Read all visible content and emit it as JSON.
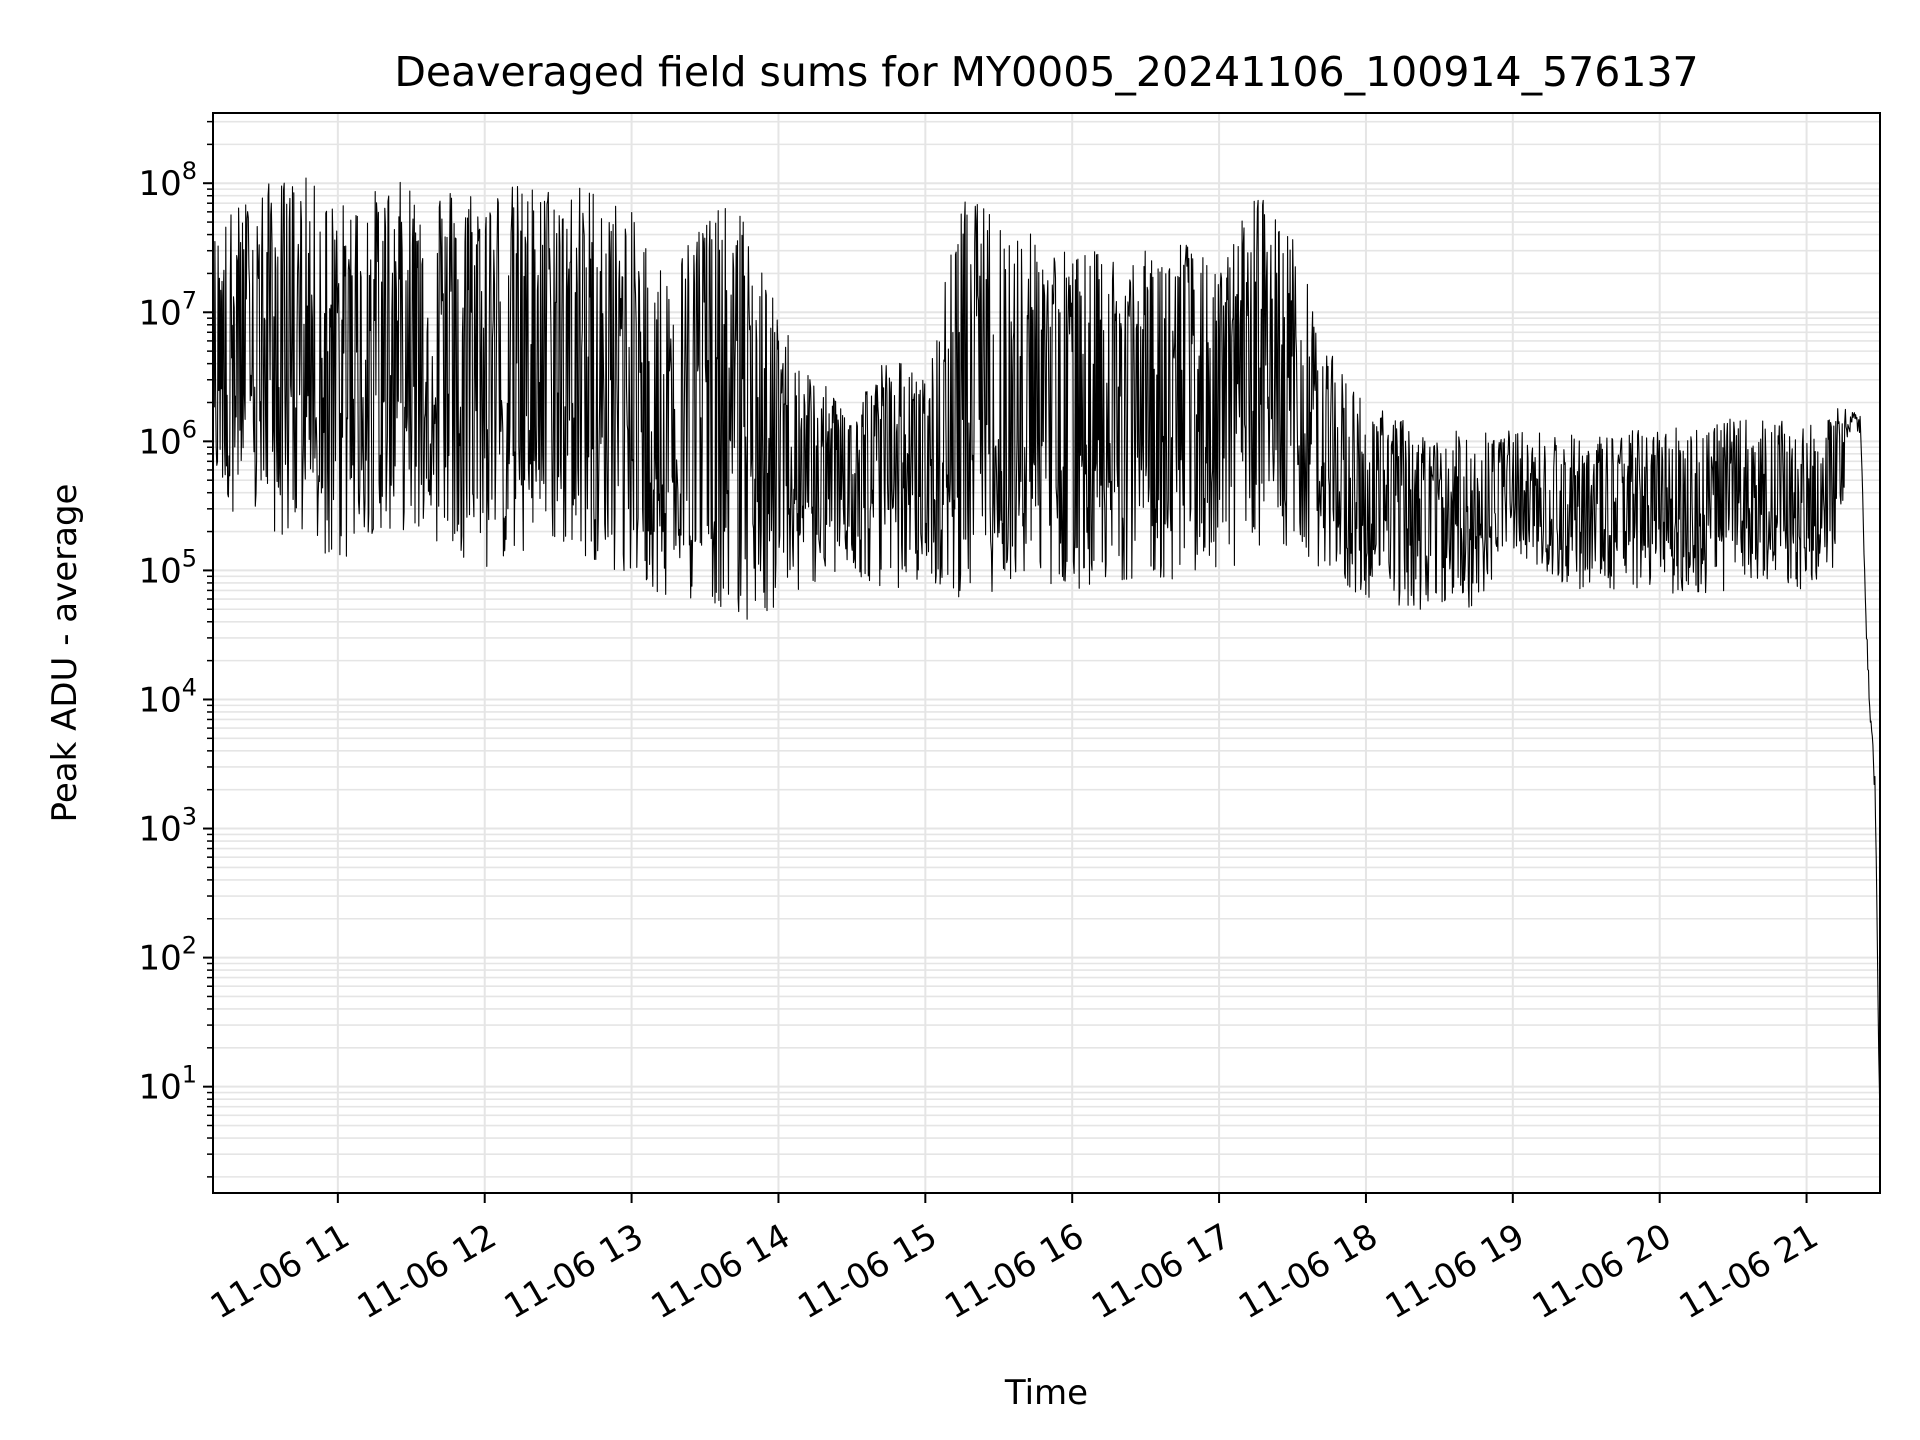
{
  "chart_data": {
    "type": "line",
    "title": "Deaveraged field sums for MY0005_20241106_100914_576137",
    "xlabel": "Time",
    "ylabel": "Peak ADU - average",
    "yscale": "log",
    "ylim": [
      1.5,
      350000000
    ],
    "xlim": [
      "2024-11-06 10:09",
      "2024-11-06 21:30"
    ],
    "grid": true,
    "line_color": "#000000",
    "grid_color": "#e5e5e5",
    "x_ticks": [
      {
        "value": "2024-11-06 11:00",
        "label": "11-06 11"
      },
      {
        "value": "2024-11-06 12:00",
        "label": "11-06 12"
      },
      {
        "value": "2024-11-06 13:00",
        "label": "11-06 13"
      },
      {
        "value": "2024-11-06 14:00",
        "label": "11-06 14"
      },
      {
        "value": "2024-11-06 15:00",
        "label": "11-06 15"
      },
      {
        "value": "2024-11-06 16:00",
        "label": "11-06 16"
      },
      {
        "value": "2024-11-06 17:00",
        "label": "11-06 17"
      },
      {
        "value": "2024-11-06 18:00",
        "label": "11-06 18"
      },
      {
        "value": "2024-11-06 19:00",
        "label": "11-06 19"
      },
      {
        "value": "2024-11-06 20:00",
        "label": "11-06 20"
      },
      {
        "value": "2024-11-06 21:00",
        "label": "11-06 21"
      }
    ],
    "y_ticks": [
      {
        "value": 10,
        "base": "10",
        "exp": "1"
      },
      {
        "value": 100,
        "base": "10",
        "exp": "2"
      },
      {
        "value": 1000,
        "base": "10",
        "exp": "3"
      },
      {
        "value": 10000,
        "base": "10",
        "exp": "4"
      },
      {
        "value": 100000,
        "base": "10",
        "exp": "5"
      },
      {
        "value": 1000000,
        "base": "10",
        "exp": "6"
      },
      {
        "value": 10000000,
        "base": "10",
        "exp": "7"
      },
      {
        "value": 100000000,
        "base": "10",
        "exp": "8"
      }
    ],
    "series": [
      {
        "x": [
          "2024-11-06 10:09",
          "2024-11-06 10:15",
          "2024-11-06 10:30",
          "2024-11-06 10:45",
          "2024-11-06 11:00",
          "2024-11-06 11:15",
          "2024-11-06 11:30",
          "2024-11-06 11:45",
          "2024-11-06 12:00",
          "2024-11-06 12:15",
          "2024-11-06 12:30",
          "2024-11-06 12:45",
          "2024-11-06 13:00",
          "2024-11-06 13:15",
          "2024-11-06 13:30",
          "2024-11-06 13:45",
          "2024-11-06 14:00",
          "2024-11-06 14:15",
          "2024-11-06 14:30",
          "2024-11-06 14:45",
          "2024-11-06 15:00",
          "2024-11-06 15:15",
          "2024-11-06 15:30",
          "2024-11-06 15:45",
          "2024-11-06 16:00",
          "2024-11-06 16:15",
          "2024-11-06 16:30",
          "2024-11-06 16:45",
          "2024-11-06 17:00",
          "2024-11-06 17:15",
          "2024-11-06 17:30",
          "2024-11-06 17:45",
          "2024-11-06 18:00",
          "2024-11-06 18:15",
          "2024-11-06 18:30",
          "2024-11-06 18:45",
          "2024-11-06 19:00",
          "2024-11-06 19:15",
          "2024-11-06 19:30",
          "2024-11-06 19:45",
          "2024-11-06 20:00",
          "2024-11-06 20:15",
          "2024-11-06 20:30",
          "2024-11-06 20:45",
          "2024-11-06 21:00",
          "2024-11-06 21:10",
          "2024-11-06 21:18",
          "2024-11-06 21:22",
          "2024-11-06 21:25",
          "2024-11-06 21:28",
          "2024-11-06 21:30"
        ],
        "hi": [
          40000000,
          60000000,
          100000000,
          120000000,
          70000000,
          90000000,
          110000000,
          100000000,
          100000000,
          100000000,
          100000000,
          100000000,
          60000000,
          20000000,
          70000000,
          60000000,
          10000000,
          3000000,
          2000000,
          5000000,
          3000000,
          80000000,
          60000000,
          40000000,
          30000000,
          30000000,
          30000000,
          40000000,
          20000000,
          100000000,
          40000000,
          5000000,
          2000000,
          1500000,
          1000000,
          1500000,
          1200000,
          1200000,
          1100000,
          1200000,
          1300000,
          1400000,
          1500000,
          1500000,
          1300000,
          1500000,
          3000000,
          1800000,
          30000,
          3000,
          5
        ],
        "lo": [
          500000,
          300000,
          200000,
          150000,
          100000,
          200000,
          200000,
          150000,
          100000,
          120000,
          150000,
          120000,
          80000,
          60000,
          60000,
          40000,
          50000,
          80000,
          90000,
          70000,
          80000,
          60000,
          70000,
          80000,
          70000,
          80000,
          90000,
          80000,
          100000,
          120000,
          150000,
          80000,
          60000,
          50000,
          50000,
          50000,
          150000,
          80000,
          70000,
          70000,
          70000,
          60000,
          70000,
          80000,
          70000,
          80000,
          800000,
          1000000,
          10000,
          1500,
          3.5
        ]
      }
    ]
  }
}
